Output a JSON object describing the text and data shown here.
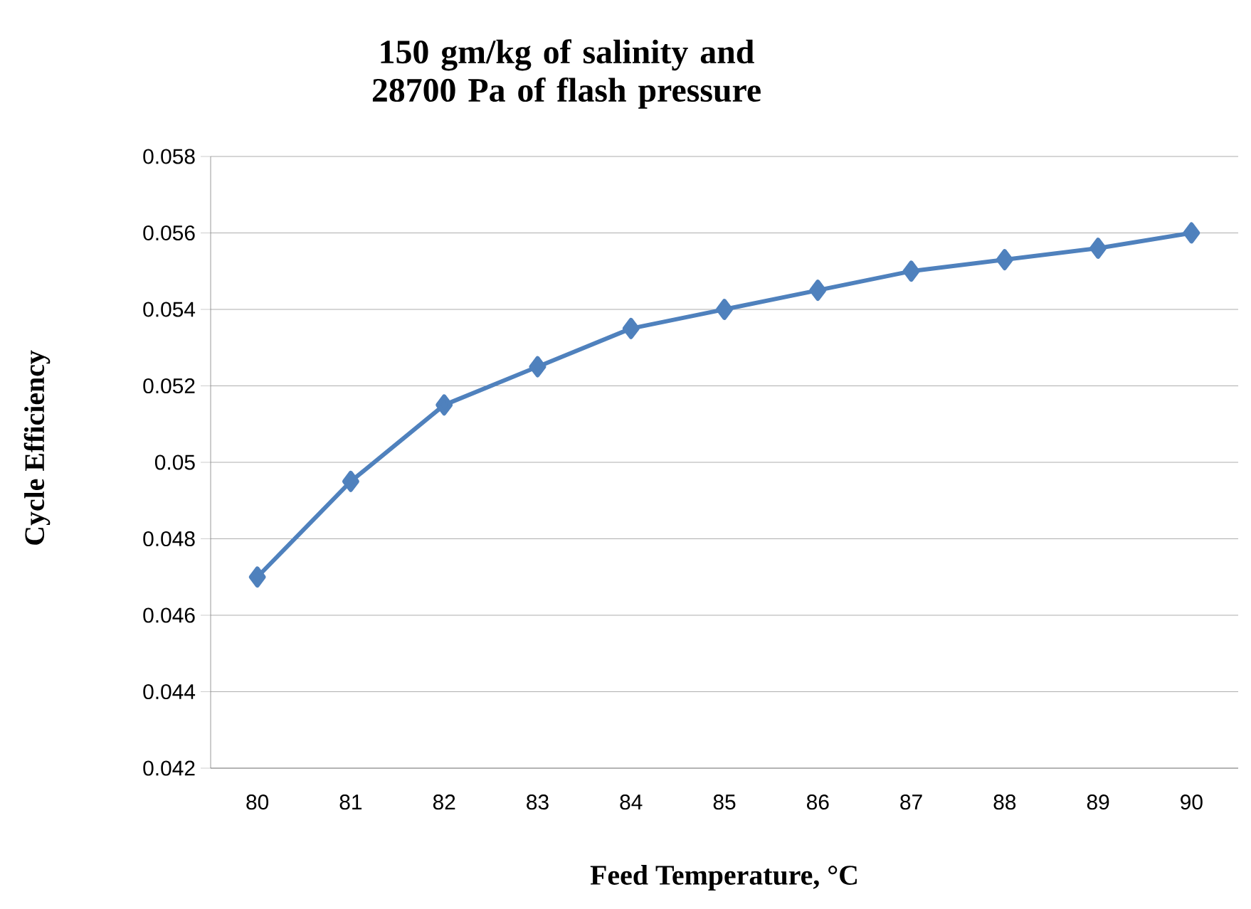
{
  "chart_data": {
    "type": "line",
    "title": "150 gm/kg of salinity and 28700 Pa of flash pressure",
    "xlabel": "Feed Temperature, °C",
    "ylabel": "Cycle Efficiency",
    "categories": [
      "80",
      "81",
      "82",
      "83",
      "84",
      "85",
      "86",
      "87",
      "88",
      "89",
      "90"
    ],
    "series": [
      {
        "color": "#4f81bd",
        "values": [
          0.047,
          0.0495,
          0.0515,
          0.0525,
          0.0535,
          0.054,
          0.0545,
          0.055,
          0.0553,
          0.0556,
          0.056
        ]
      }
    ],
    "ylim": [
      0.042,
      0.058
    ],
    "yticks": [
      0.042,
      0.044,
      0.046,
      0.048,
      0.05,
      0.052,
      0.054,
      0.056,
      0.058
    ],
    "grid": "y",
    "marker": "diamond",
    "line_style": "solid"
  }
}
